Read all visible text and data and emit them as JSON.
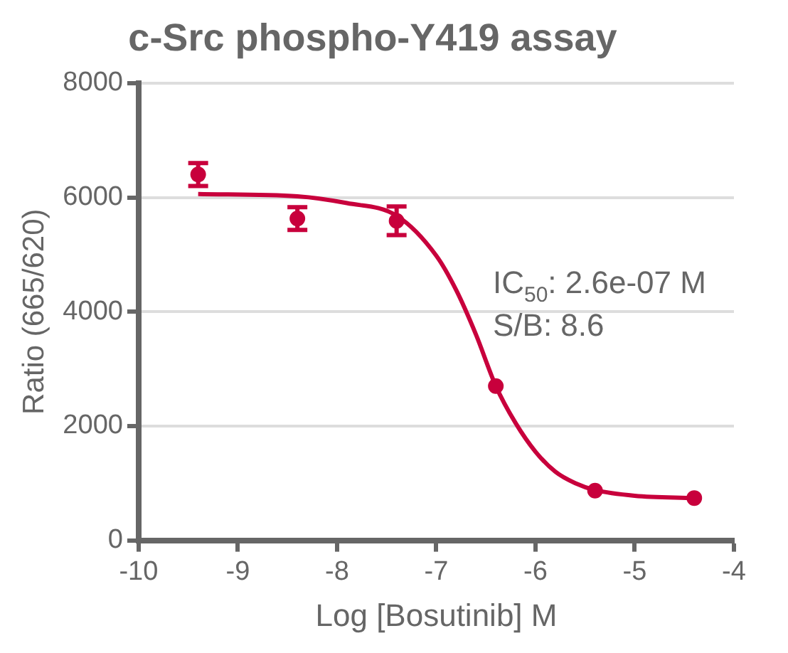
{
  "chart_data": {
    "type": "scatter",
    "title": "c-Src phospho-Y419 assay",
    "xlabel": "Log [Bosutinib] M",
    "ylabel": "Ratio (665/620)",
    "xlim": [
      -10,
      -4
    ],
    "xticks": [
      -10,
      -9,
      -8,
      -7,
      -6,
      -5,
      -4
    ],
    "ylim": [
      0,
      8000
    ],
    "yticks": [
      0,
      2000,
      4000,
      6000,
      8000
    ],
    "grid": "y",
    "annotations": [
      "IC$_{50}$: 2.6e-07 M",
      "S/B: 8.6"
    ],
    "series": [
      {
        "marker": "circle",
        "color": "#c8003c",
        "x": [
          -9.4,
          -8.4,
          -7.4,
          -6.4,
          -5.4,
          -4.4
        ],
        "values": [
          6400,
          5630,
          5590,
          2700,
          870,
          740
        ],
        "errors": [
          200,
          200,
          250,
          null,
          null,
          null
        ]
      },
      {
        "type": "line",
        "marker": "none",
        "color": "#c8003c",
        "x": [
          -9.4,
          -8.4,
          -7.9,
          -7.4,
          -7.0,
          -6.8,
          -6.6,
          -6.4,
          -6.2,
          -6.0,
          -5.8,
          -5.6,
          -5.4,
          -5.0,
          -4.4
        ],
        "values": [
          6060,
          6020,
          5900,
          5680,
          4980,
          4380,
          3600,
          2700,
          2050,
          1550,
          1200,
          1000,
          880,
          780,
          740
        ]
      }
    ]
  }
}
